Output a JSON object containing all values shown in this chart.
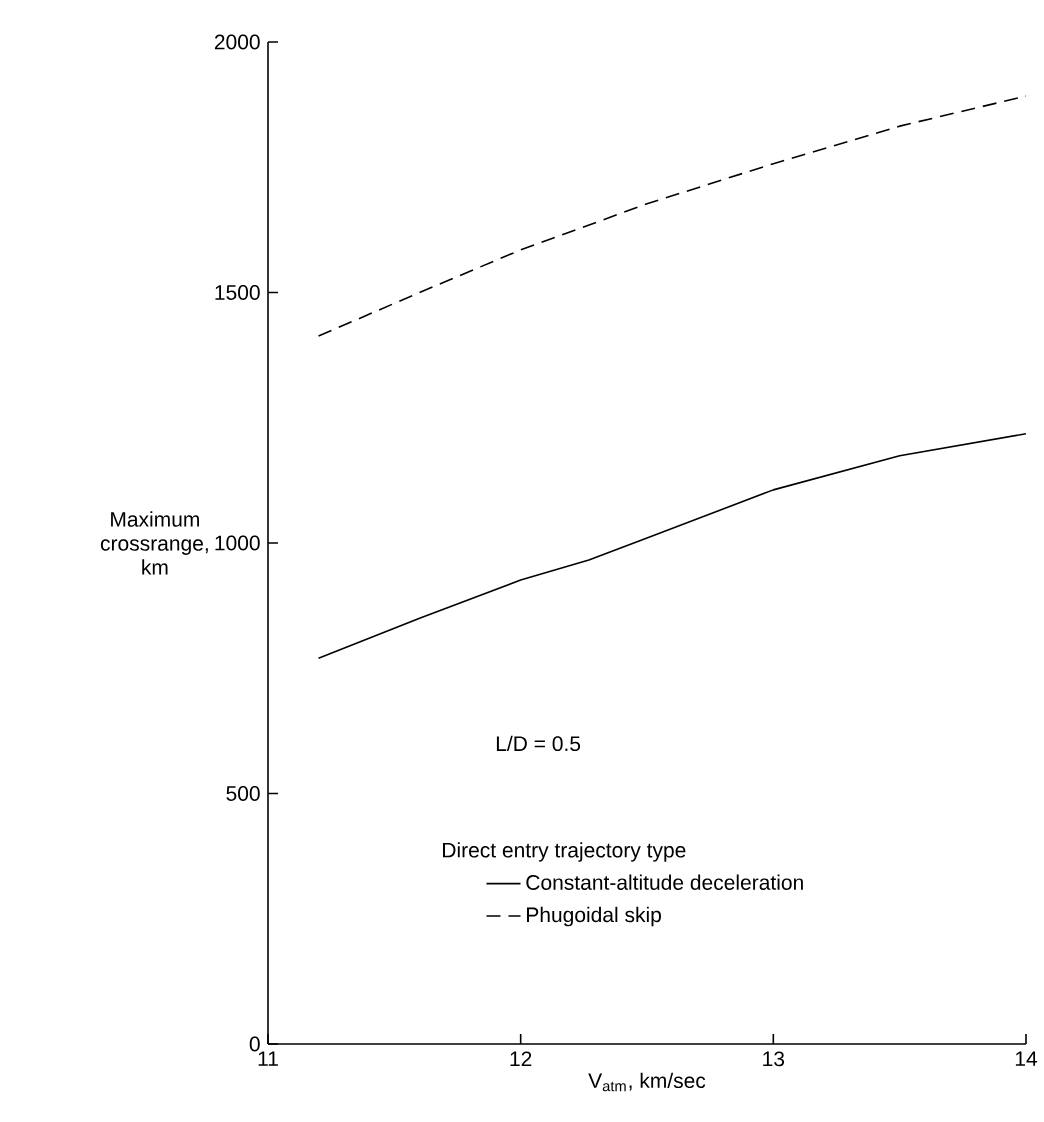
{
  "chart_data": {
    "type": "line",
    "xlabel": "V$_{atm}$, km/sec",
    "ylabel": "Maximum crossrange, km",
    "legend_title": "Direct entry trajectory type",
    "annotations": [
      "L/D = 0.5"
    ],
    "xlim": [
      11,
      14
    ],
    "xticks": [
      11,
      12,
      13,
      14
    ],
    "ylim": [
      0,
      2000
    ],
    "yticks": [
      0,
      500,
      1000,
      1500,
      2000
    ],
    "grid": false,
    "legend": "bottom",
    "marker": "none",
    "series": [
      {
        "name": "Constant-altitude deceleration",
        "color": "#000000",
        "line_style": "solid",
        "x": [
          11.2,
          11.6,
          12.0,
          12.27,
          12.5,
          13.0,
          13.5,
          14.0
        ],
        "values": [
          770,
          850,
          926,
          966,
          1010,
          1106,
          1174,
          1218
        ]
      },
      {
        "name": "Phugoidal skip",
        "color": "#000000",
        "line_style": "dashed",
        "x": [
          11.2,
          11.6,
          12.0,
          12.5,
          13.0,
          13.5,
          14.0
        ],
        "values": [
          1413,
          1500,
          1585,
          1677,
          1757,
          1832,
          1892
        ]
      }
    ]
  }
}
